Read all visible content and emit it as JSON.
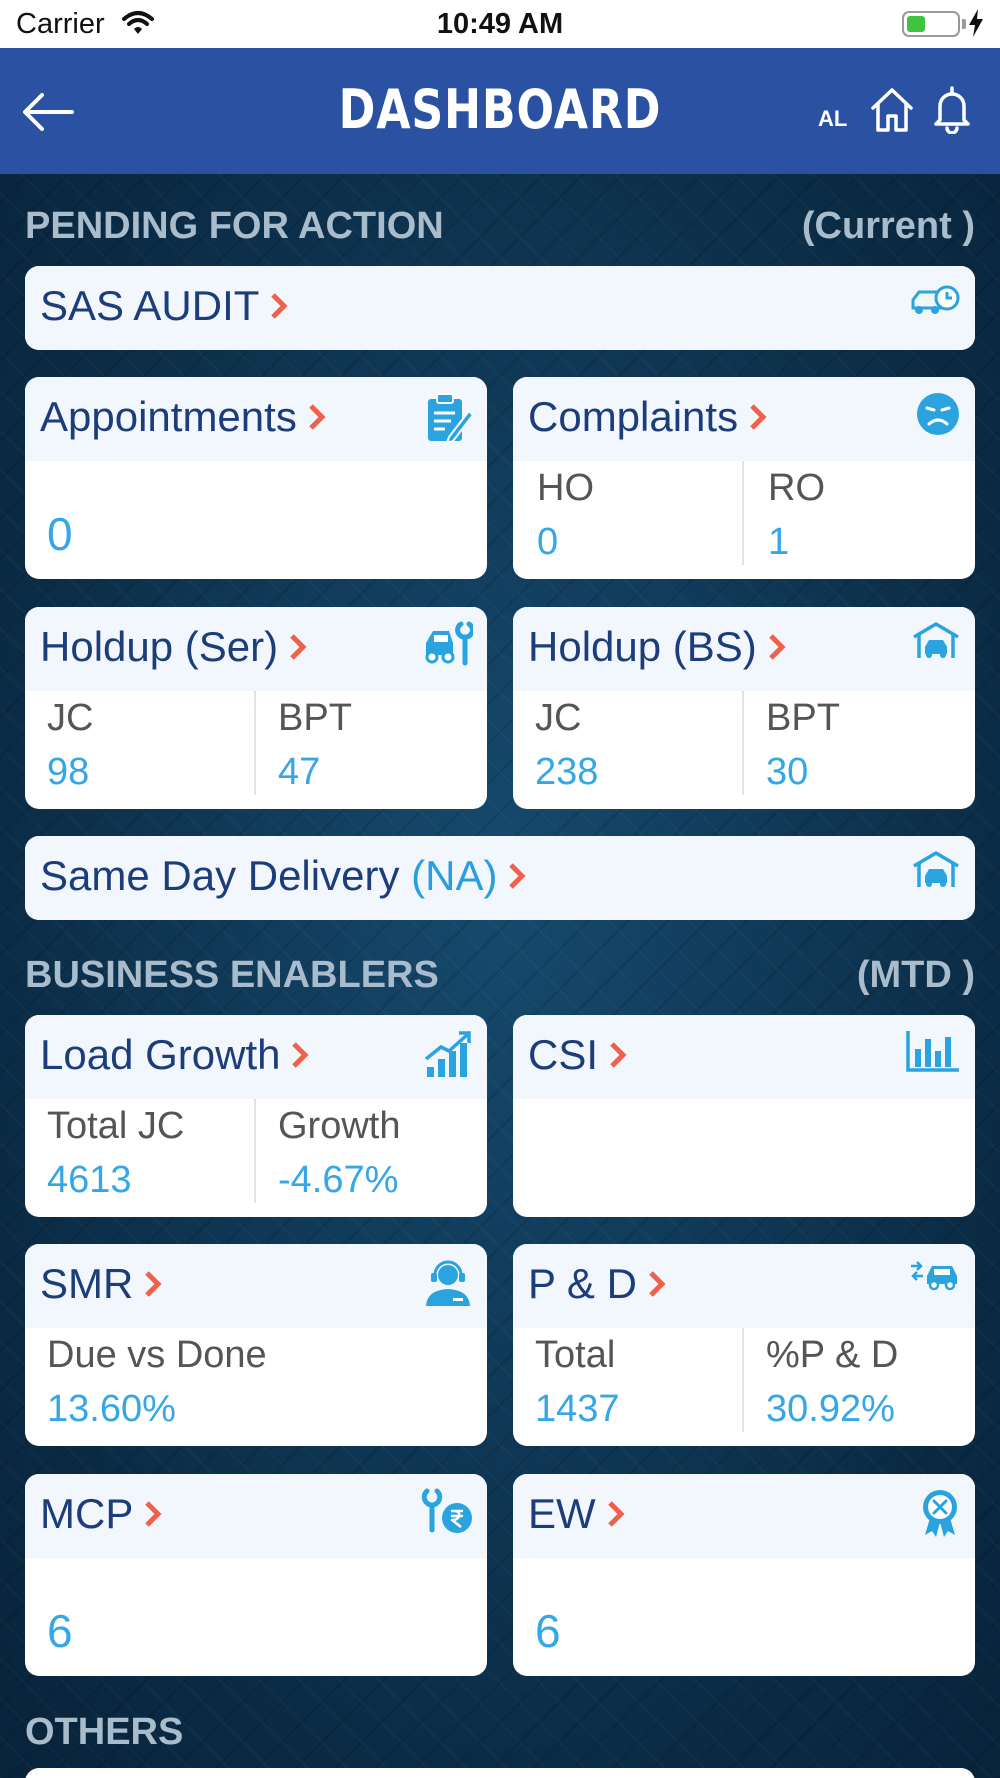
{
  "status_bar": {
    "carrier": "Carrier",
    "time": "10:49 AM",
    "battery_level": 0.35
  },
  "nav": {
    "title": "DASHBOARD",
    "user_initials": "AL",
    "icons": [
      "back-arrow-icon",
      "home-icon",
      "bell-icon"
    ]
  },
  "sections": {
    "pending": {
      "title": "PENDING FOR ACTION",
      "period": "(Current )"
    },
    "business": {
      "title": "BUSINESS ENABLERS",
      "period": "(MTD )"
    },
    "others": {
      "title": "OTHERS"
    }
  },
  "cards": {
    "sas_audit": {
      "title": "SAS AUDIT",
      "icon": "car-clock-icon"
    },
    "appointments": {
      "title": "Appointments",
      "value": "0",
      "icon": "clipboard-edit-icon"
    },
    "complaints": {
      "title": "Complaints",
      "icon": "sad-face-icon",
      "cols": [
        {
          "label": "HO",
          "value": "0"
        },
        {
          "label": "RO",
          "value": "1"
        }
      ]
    },
    "holdup_ser": {
      "title": "Holdup (Ser)",
      "icon": "car-wrench-icon",
      "cols": [
        {
          "label": "JC",
          "value": "98"
        },
        {
          "label": "BPT",
          "value": "47"
        }
      ]
    },
    "holdup_bs": {
      "title": "Holdup (BS)",
      "icon": "garage-car-icon",
      "cols": [
        {
          "label": "JC",
          "value": "238"
        },
        {
          "label": "BPT",
          "value": "30"
        }
      ]
    },
    "same_day": {
      "title": "Same Day Delivery",
      "suffix": "(NA)",
      "icon": "garage-car-icon"
    },
    "load_growth": {
      "title": "Load Growth",
      "icon": "growth-chart-icon",
      "cols": [
        {
          "label": "Total JC",
          "value": "4613"
        },
        {
          "label": "Growth",
          "value": "-4.67%"
        }
      ]
    },
    "csi": {
      "title": "CSI",
      "icon": "bar-chart-icon"
    },
    "smr": {
      "title": "SMR",
      "icon": "support-agent-icon",
      "cols": [
        {
          "label": "Due vs Done",
          "value": "13.60%"
        }
      ]
    },
    "pd": {
      "title": "P & D",
      "icon": "car-transfer-icon",
      "cols": [
        {
          "label": "Total",
          "value": "1437"
        },
        {
          "label": "%P & D",
          "value": "30.92%"
        }
      ]
    },
    "mcp": {
      "title": "MCP",
      "value": "6",
      "icon": "wrench-rupee-icon"
    },
    "ew": {
      "title": "EW",
      "value": "6",
      "icon": "award-badge-icon"
    }
  },
  "colors": {
    "nav_bg": "#2a51a2",
    "title_text": "#1d3d7a",
    "value_text": "#35a6e6",
    "chevron": "#f0604b",
    "icon": "#2aa3de"
  }
}
